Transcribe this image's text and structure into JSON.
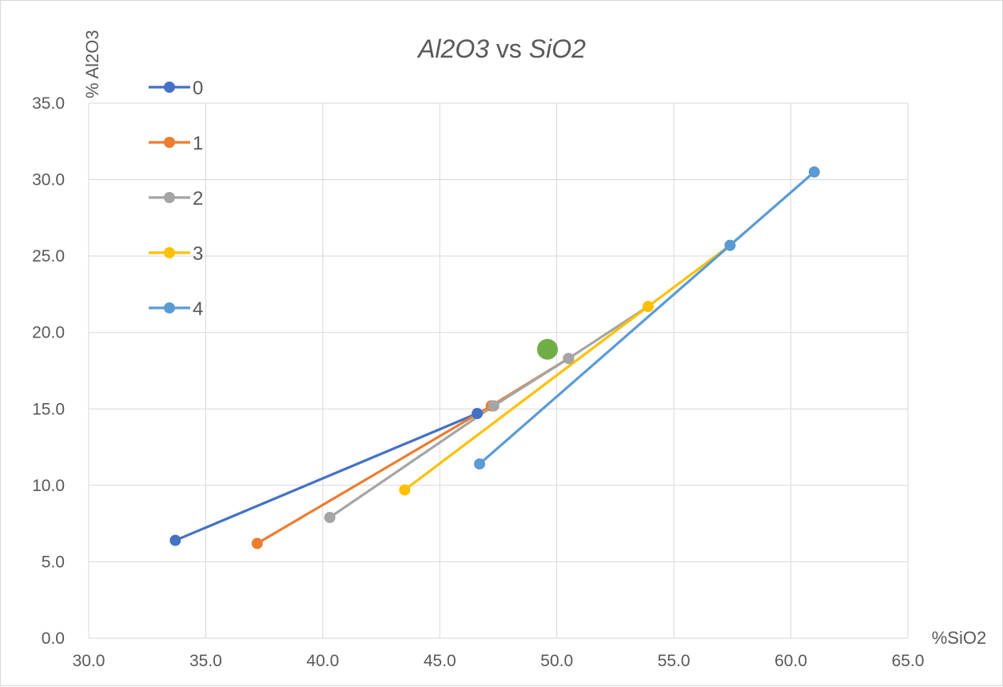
{
  "chart_data": {
    "type": "line",
    "title": {
      "part1": "Al2O3",
      "part2": " vs ",
      "part3": "SiO2"
    },
    "xlabel": "%SiO2",
    "ylabel": "% Al2O3",
    "xlim": [
      30,
      65
    ],
    "ylim": [
      0,
      35
    ],
    "x_ticks": [
      "30.0",
      "35.0",
      "40.0",
      "45.0",
      "50.0",
      "55.0",
      "60.0",
      "65.0"
    ],
    "y_ticks": [
      "0.0",
      "5.0",
      "10.0",
      "15.0",
      "20.0",
      "25.0",
      "30.0",
      "35.0"
    ],
    "grid": true,
    "legend_position": "top-left inside",
    "series": [
      {
        "name": "0",
        "color": "#4472c4",
        "points": [
          [
            33.7,
            6.4
          ],
          [
            46.6,
            14.7
          ],
          [
            47.3,
            15.2
          ]
        ]
      },
      {
        "name": "1",
        "color": "#ed7d31",
        "points": [
          [
            37.2,
            6.2
          ],
          [
            47.2,
            15.2
          ],
          [
            50.5,
            18.3
          ]
        ]
      },
      {
        "name": "2",
        "color": "#a5a5a5",
        "points": [
          [
            40.3,
            7.9
          ],
          [
            47.3,
            15.2
          ],
          [
            50.5,
            18.3
          ],
          [
            53.9,
            21.7
          ]
        ]
      },
      {
        "name": "3",
        "color": "#ffc000",
        "points": [
          [
            43.5,
            9.7
          ],
          [
            53.9,
            21.7
          ],
          [
            57.4,
            25.7
          ]
        ]
      },
      {
        "name": "4",
        "color": "#5b9bd5",
        "points": [
          [
            46.7,
            11.4
          ],
          [
            57.4,
            25.7
          ],
          [
            61.0,
            30.5
          ]
        ]
      }
    ],
    "highlight_point": {
      "x": 49.6,
      "y": 18.9,
      "color": "#70ad47"
    }
  }
}
